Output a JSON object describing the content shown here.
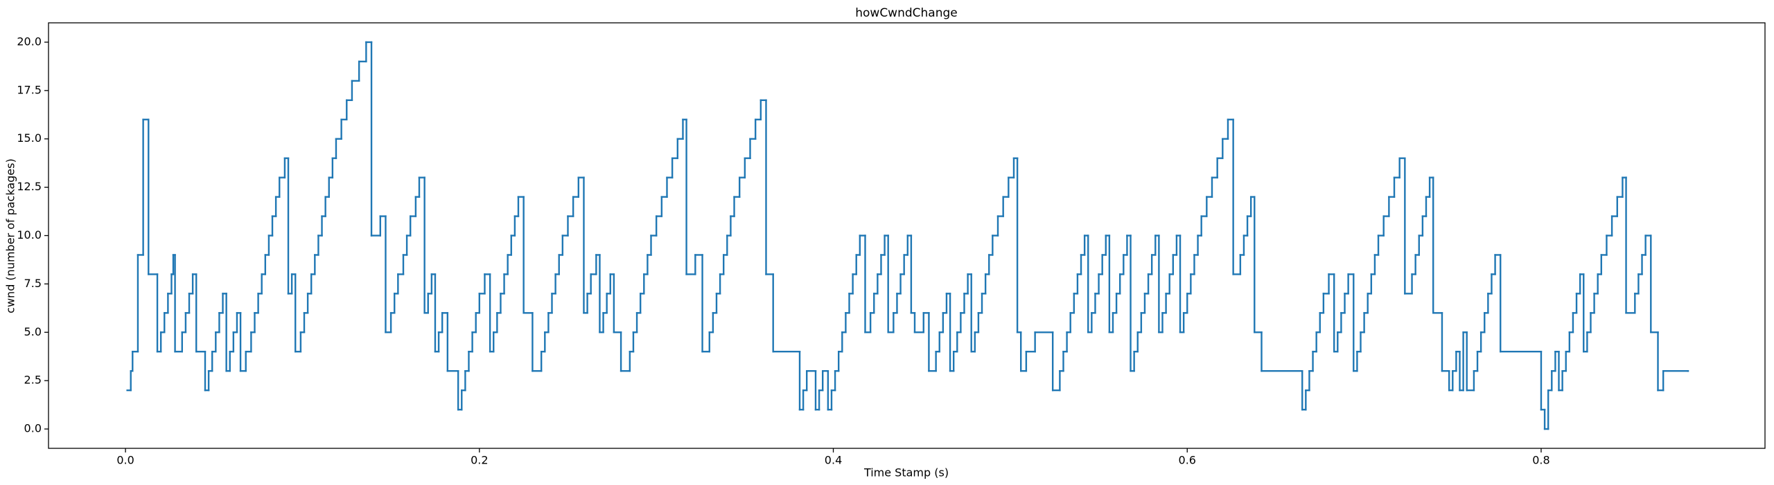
{
  "chart_data": {
    "type": "line",
    "drawstyle": "steps-post",
    "title": "howCwndChange",
    "x_label": "Time Stamp (s)",
    "y_label": "cwnd (number of packages)",
    "xlim": [
      -0.0435,
      0.9265
    ],
    "ylim": [
      -1,
      21
    ],
    "xticks": [
      {
        "value": 0,
        "label": "0.0"
      },
      0.2,
      0.4,
      0.6,
      0.8
    ],
    "yticks": [
      {
        "value": 0,
        "label": "0.0"
      },
      2.5,
      {
        "value": 5,
        "label": "5.0"
      },
      7.5,
      {
        "value": 10,
        "label": "10.0"
      },
      12.5,
      {
        "value": 15,
        "label": "15.0"
      },
      17.5,
      {
        "value": 20,
        "label": "20.0"
      }
    ],
    "grid": false,
    "series": [
      {
        "color": "#1f77b4",
        "x": [
          0.001,
          0.003,
          0.004,
          0.007,
          0.01,
          0.013,
          0.018,
          0.02,
          0.022,
          0.024,
          0.026,
          0.027,
          0.028,
          0.032,
          0.034,
          0.036,
          0.038,
          0.04,
          0.045,
          0.047,
          0.049,
          0.051,
          0.053,
          0.055,
          0.057,
          0.059,
          0.061,
          0.063,
          0.065,
          0.068,
          0.071,
          0.073,
          0.075,
          0.077,
          0.079,
          0.081,
          0.083,
          0.085,
          0.087,
          0.09,
          0.092,
          0.094,
          0.096,
          0.099,
          0.101,
          0.103,
          0.105,
          0.107,
          0.109,
          0.111,
          0.113,
          0.115,
          0.117,
          0.119,
          0.122,
          0.125,
          0.128,
          0.132,
          0.136,
          0.139,
          0.144,
          0.147,
          0.15,
          0.152,
          0.154,
          0.157,
          0.159,
          0.161,
          0.164,
          0.166,
          0.169,
          0.171,
          0.173,
          0.175,
          0.177,
          0.179,
          0.182,
          0.188,
          0.19,
          0.192,
          0.194,
          0.196,
          0.198,
          0.2,
          0.203,
          0.206,
          0.208,
          0.21,
          0.212,
          0.214,
          0.216,
          0.218,
          0.22,
          0.222,
          0.225,
          0.23,
          0.235,
          0.237,
          0.239,
          0.241,
          0.243,
          0.245,
          0.247,
          0.25,
          0.253,
          0.256,
          0.259,
          0.261,
          0.263,
          0.266,
          0.268,
          0.27,
          0.272,
          0.274,
          0.276,
          0.28,
          0.285,
          0.287,
          0.289,
          0.291,
          0.293,
          0.295,
          0.297,
          0.3,
          0.303,
          0.306,
          0.309,
          0.312,
          0.315,
          0.317,
          0.322,
          0.326,
          0.33,
          0.332,
          0.334,
          0.336,
          0.338,
          0.34,
          0.342,
          0.344,
          0.347,
          0.35,
          0.353,
          0.356,
          0.359,
          0.362,
          0.366,
          0.381,
          0.383,
          0.385,
          0.39,
          0.392,
          0.394,
          0.397,
          0.399,
          0.401,
          0.403,
          0.405,
          0.407,
          0.409,
          0.411,
          0.413,
          0.415,
          0.418,
          0.421,
          0.423,
          0.425,
          0.427,
          0.429,
          0.431,
          0.434,
          0.436,
          0.438,
          0.44,
          0.442,
          0.444,
          0.446,
          0.451,
          0.454,
          0.458,
          0.46,
          0.462,
          0.464,
          0.466,
          0.468,
          0.47,
          0.472,
          0.474,
          0.476,
          0.478,
          0.48,
          0.482,
          0.484,
          0.486,
          0.488,
          0.49,
          0.493,
          0.496,
          0.499,
          0.502,
          0.504,
          0.506,
          0.509,
          0.514,
          0.524,
          0.528,
          0.53,
          0.532,
          0.534,
          0.536,
          0.538,
          0.54,
          0.542,
          0.544,
          0.546,
          0.548,
          0.55,
          0.552,
          0.554,
          0.556,
          0.558,
          0.56,
          0.562,
          0.564,
          0.566,
          0.568,
          0.57,
          0.572,
          0.574,
          0.576,
          0.578,
          0.58,
          0.582,
          0.584,
          0.586,
          0.588,
          0.59,
          0.592,
          0.594,
          0.596,
          0.598,
          0.6,
          0.602,
          0.604,
          0.606,
          0.608,
          0.611,
          0.614,
          0.617,
          0.62,
          0.623,
          0.626,
          0.63,
          0.632,
          0.634,
          0.636,
          0.638,
          0.642,
          0.665,
          0.667,
          0.669,
          0.671,
          0.673,
          0.675,
          0.677,
          0.68,
          0.683,
          0.685,
          0.687,
          0.689,
          0.691,
          0.694,
          0.696,
          0.698,
          0.7,
          0.702,
          0.704,
          0.706,
          0.708,
          0.711,
          0.714,
          0.717,
          0.72,
          0.723,
          0.727,
          0.729,
          0.731,
          0.733,
          0.735,
          0.737,
          0.739,
          0.744,
          0.748,
          0.75,
          0.752,
          0.754,
          0.756,
          0.758,
          0.762,
          0.764,
          0.766,
          0.768,
          0.77,
          0.772,
          0.774,
          0.777,
          0.8,
          0.802,
          0.804,
          0.806,
          0.808,
          0.81,
          0.812,
          0.814,
          0.816,
          0.818,
          0.82,
          0.822,
          0.824,
          0.826,
          0.828,
          0.83,
          0.832,
          0.834,
          0.837,
          0.84,
          0.843,
          0.846,
          0.848,
          0.853,
          0.855,
          0.857,
          0.859,
          0.862,
          0.866,
          0.869,
          0.883
        ],
        "values": [
          2,
          3,
          4,
          9,
          16,
          8,
          4,
          5,
          6,
          7,
          8,
          9,
          4,
          5,
          6,
          7,
          8,
          4,
          2,
          3,
          4,
          5,
          6,
          7,
          3,
          4,
          5,
          6,
          3,
          4,
          5,
          6,
          7,
          8,
          9,
          10,
          11,
          12,
          13,
          14,
          7,
          8,
          4,
          5,
          6,
          7,
          8,
          9,
          10,
          11,
          12,
          13,
          14,
          15,
          16,
          17,
          18,
          19,
          20,
          10,
          11,
          5,
          6,
          7,
          8,
          9,
          10,
          11,
          12,
          13,
          6,
          7,
          8,
          4,
          5,
          6,
          3,
          1,
          2,
          3,
          4,
          5,
          6,
          7,
          8,
          4,
          5,
          6,
          7,
          8,
          9,
          10,
          11,
          12,
          6,
          3,
          4,
          5,
          6,
          7,
          8,
          9,
          10,
          11,
          12,
          13,
          6,
          7,
          8,
          9,
          5,
          6,
          7,
          8,
          5,
          3,
          4,
          5,
          6,
          7,
          8,
          9,
          10,
          11,
          12,
          13,
          14,
          15,
          16,
          8,
          9,
          4,
          5,
          6,
          7,
          8,
          9,
          10,
          11,
          12,
          13,
          14,
          15,
          16,
          17,
          8,
          4,
          1,
          2,
          3,
          1,
          2,
          3,
          1,
          2,
          3,
          4,
          5,
          6,
          7,
          8,
          9,
          10,
          5,
          6,
          7,
          8,
          9,
          10,
          5,
          6,
          7,
          8,
          9,
          10,
          6,
          5,
          6,
          3,
          4,
          5,
          6,
          7,
          3,
          4,
          5,
          6,
          7,
          8,
          4,
          5,
          6,
          7,
          8,
          9,
          10,
          11,
          12,
          13,
          14,
          5,
          3,
          4,
          5,
          2,
          3,
          4,
          5,
          6,
          7,
          8,
          9,
          10,
          5,
          6,
          7,
          8,
          9,
          10,
          5,
          6,
          7,
          8,
          9,
          10,
          3,
          4,
          5,
          6,
          7,
          8,
          9,
          10,
          5,
          6,
          7,
          8,
          9,
          10,
          5,
          6,
          7,
          8,
          9,
          10,
          11,
          12,
          13,
          14,
          15,
          16,
          8,
          9,
          10,
          11,
          12,
          5,
          3,
          1,
          2,
          3,
          4,
          5,
          6,
          7,
          8,
          4,
          5,
          6,
          7,
          8,
          3,
          4,
          5,
          6,
          7,
          8,
          9,
          10,
          11,
          12,
          13,
          14,
          7,
          8,
          9,
          10,
          11,
          12,
          13,
          6,
          3,
          2,
          3,
          4,
          2,
          5,
          2,
          3,
          4,
          5,
          6,
          7,
          8,
          9,
          4,
          1,
          0,
          2,
          3,
          4,
          2,
          3,
          4,
          5,
          6,
          7,
          8,
          4,
          5,
          6,
          7,
          8,
          9,
          10,
          11,
          12,
          13,
          6,
          7,
          8,
          9,
          10,
          5,
          2,
          3,
          3
        ]
      }
    ]
  }
}
